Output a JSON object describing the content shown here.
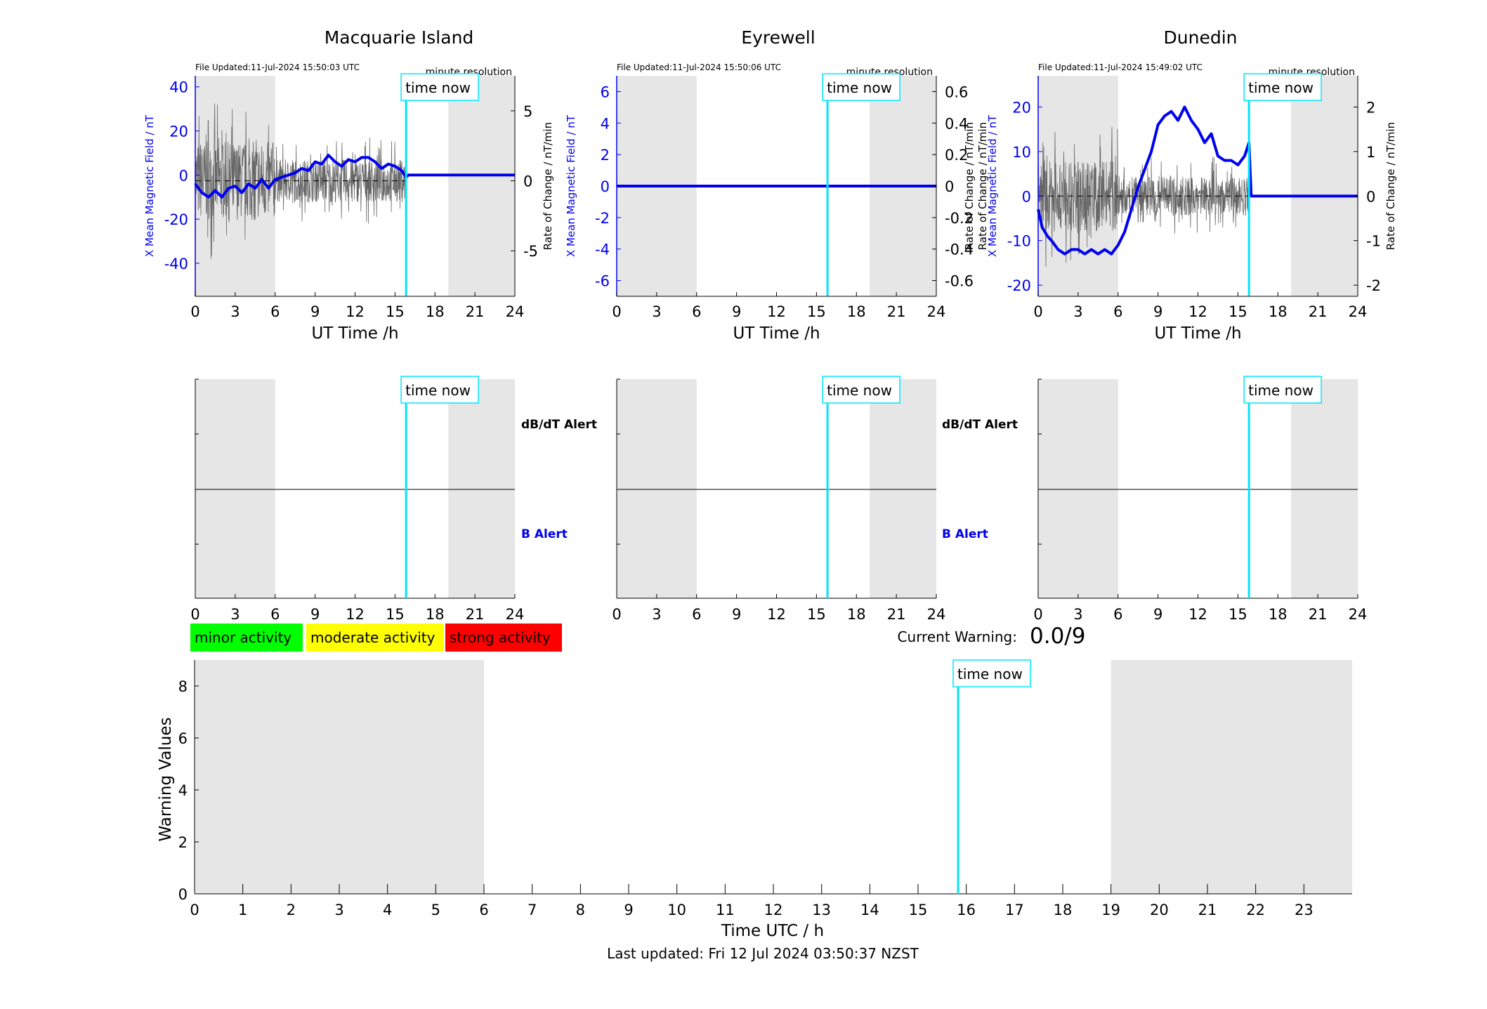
{
  "colors": {
    "blue": "#0000ee",
    "cyan": "#00e5ff",
    "shade": "#e6e6e6",
    "minor": "#00ff00",
    "moderate": "#ffff00",
    "strong": "#ff0000",
    "noise": "#666666"
  },
  "time_now_label": "time now",
  "time_now_hour": 15.83,
  "shade_ranges_h": [
    [
      0,
      6
    ],
    [
      19,
      24
    ]
  ],
  "x_ticks": [
    0,
    3,
    6,
    9,
    12,
    15,
    18,
    21,
    24
  ],
  "top_xlabel": "UT Time /h",
  "resolution_label": "minute resolution",
  "left_ylabel": "X Mean Magnetic Field / nT",
  "right_ylabel": "Rate of Change / nT/min",
  "stations": [
    {
      "name": "Macquarie Island",
      "file_updated": "File Updated:11-Jul-2024 15:50:03 UTC",
      "left_ylim": [
        -55,
        45
      ],
      "left_ticks": [
        40,
        20,
        0,
        -20,
        -40
      ],
      "right_ylim": [
        -8.25,
        7.5
      ],
      "right_ticks": [
        5,
        0,
        -5
      ],
      "right_tick_labels": [
        "5",
        "0",
        "-5"
      ]
    },
    {
      "name": "Eyrewell",
      "file_updated": "File Updated:11-Jul-2024 15:50:06 UTC",
      "left_ylim": [
        -7,
        7
      ],
      "left_ticks": [
        6,
        4,
        2,
        0,
        -2,
        -4,
        -6
      ],
      "right_ylim": [
        -0.7,
        0.7
      ],
      "right_ticks": [
        0.6,
        0.4,
        0.2,
        0,
        -0.2,
        -0.4,
        -0.6
      ],
      "right_tick_labels": [
        "0.6",
        "0.4",
        "0.2",
        "0",
        "-0.2",
        "-0.4",
        "-0.6"
      ]
    },
    {
      "name": "Dunedin",
      "file_updated": "File Updated:11-Jul-2024 15:49:02 UTC",
      "left_ylim": [
        -22.5,
        27
      ],
      "left_ticks": [
        20,
        10,
        0,
        -10,
        -20
      ],
      "right_ylim": [
        -2.25,
        2.7
      ],
      "right_ticks": [
        2,
        1,
        0,
        -1,
        -2
      ],
      "right_tick_labels": [
        "2",
        "1",
        "0",
        "-1",
        "-2"
      ]
    }
  ],
  "alerts": {
    "dbdt_label": "dB/dT Alert",
    "b_label": "B Alert"
  },
  "legend": {
    "minor": "minor activity",
    "moderate": "moderate activity",
    "strong": "strong activity"
  },
  "current_warning_label": "Current Warning:",
  "current_warning_value": "0.0/9",
  "warning_chart": {
    "ylabel": "Warning Values",
    "xlabel": "Time UTC / h",
    "ylim": [
      0,
      9
    ],
    "y_ticks": [
      0,
      2,
      4,
      6,
      8
    ],
    "xlim": [
      0,
      24
    ],
    "x_ticks": [
      0,
      1,
      2,
      3,
      4,
      5,
      6,
      7,
      8,
      9,
      10,
      11,
      12,
      13,
      14,
      15,
      16,
      17,
      18,
      19,
      20,
      21,
      22,
      23
    ]
  },
  "last_updated": "Last updated: Fri 12 Jul 2024 03:50:37 NZST",
  "chart_data": [
    {
      "type": "line",
      "title": "Macquarie Island",
      "xlabel": "UT Time /h",
      "ylabel": "X Mean Magnetic Field / nT",
      "ylabel_right": "Rate of Change / nT/min",
      "xlim": [
        0,
        24
      ],
      "ylim": [
        -55,
        45
      ],
      "y2lim": [
        -8.25,
        7.5
      ],
      "series": [
        {
          "name": "X Mean Magnetic Field / nT",
          "x": [
            0,
            0.5,
            1,
            1.5,
            2,
            2.5,
            3,
            3.5,
            4,
            4.5,
            5,
            5.5,
            6,
            6.5,
            7,
            7.5,
            8,
            8.5,
            9,
            9.5,
            10,
            10.5,
            11,
            11.5,
            12,
            12.5,
            13,
            13.5,
            14,
            14.5,
            15,
            15.5,
            15.83,
            16,
            18,
            20,
            22,
            24
          ],
          "y": [
            -4,
            -8,
            -10,
            -7,
            -10,
            -6,
            -5,
            -8,
            -4,
            -6,
            -2,
            -6,
            -2,
            -1,
            0,
            1,
            3,
            2,
            6,
            5,
            9,
            6,
            4,
            7,
            6,
            8,
            8,
            6,
            3,
            5,
            4,
            2,
            -1,
            0,
            0,
            0,
            0,
            0
          ]
        },
        {
          "name": "Rate of Change / nT/min",
          "x": [
            0,
            15.83
          ],
          "y_range": [
            -3,
            4
          ],
          "note_type": "noisy trace"
        }
      ]
    },
    {
      "type": "line",
      "title": "Eyrewell",
      "xlabel": "UT Time /h",
      "ylabel": "X Mean Magnetic Field / nT",
      "ylabel_right": "Rate of Change / nT/min",
      "xlim": [
        0,
        24
      ],
      "ylim": [
        -7,
        7
      ],
      "y2lim": [
        -0.7,
        0.7
      ],
      "series": [
        {
          "name": "X Mean Magnetic Field / nT",
          "x": [
            0,
            24
          ],
          "y": [
            0,
            0
          ]
        }
      ]
    },
    {
      "type": "line",
      "title": "Dunedin",
      "xlabel": "UT Time /h",
      "ylabel": "X Mean Magnetic Field / nT",
      "ylabel_right": "Rate of Change / nT/min",
      "xlim": [
        0,
        24
      ],
      "ylim": [
        -22.5,
        27
      ],
      "y2lim": [
        -2.25,
        2.7
      ],
      "series": [
        {
          "name": "X Mean Magnetic Field / nT",
          "x": [
            0,
            0.3,
            0.7,
            1,
            1.5,
            2,
            2.5,
            3,
            3.5,
            4,
            4.5,
            5,
            5.5,
            6,
            6.5,
            7,
            7.5,
            8,
            8.5,
            9,
            9.5,
            10,
            10.5,
            11,
            11.5,
            12,
            12.5,
            13,
            13.5,
            14,
            14.5,
            15,
            15.5,
            15.83,
            16,
            18,
            20,
            22,
            24
          ],
          "y": [
            -3,
            -7,
            -9,
            -10,
            -12,
            -13,
            -12,
            -12,
            -13,
            -12,
            -13,
            -12,
            -13,
            -11,
            -8,
            -3,
            2,
            6,
            10,
            16,
            18,
            19,
            17,
            20,
            17,
            15,
            12,
            14,
            9,
            8,
            8,
            7,
            9,
            12,
            0,
            0,
            0,
            0,
            0
          ]
        },
        {
          "name": "Rate of Change / nT/min",
          "x": [
            0,
            15.83
          ],
          "y_range": [
            -1,
            1
          ],
          "note_type": "noisy trace"
        }
      ]
    },
    {
      "type": "bar",
      "title": "",
      "xlabel": "Time UTC / h",
      "ylabel": "Warning Values",
      "xlim": [
        0,
        24
      ],
      "ylim": [
        0,
        9
      ],
      "values": []
    }
  ]
}
